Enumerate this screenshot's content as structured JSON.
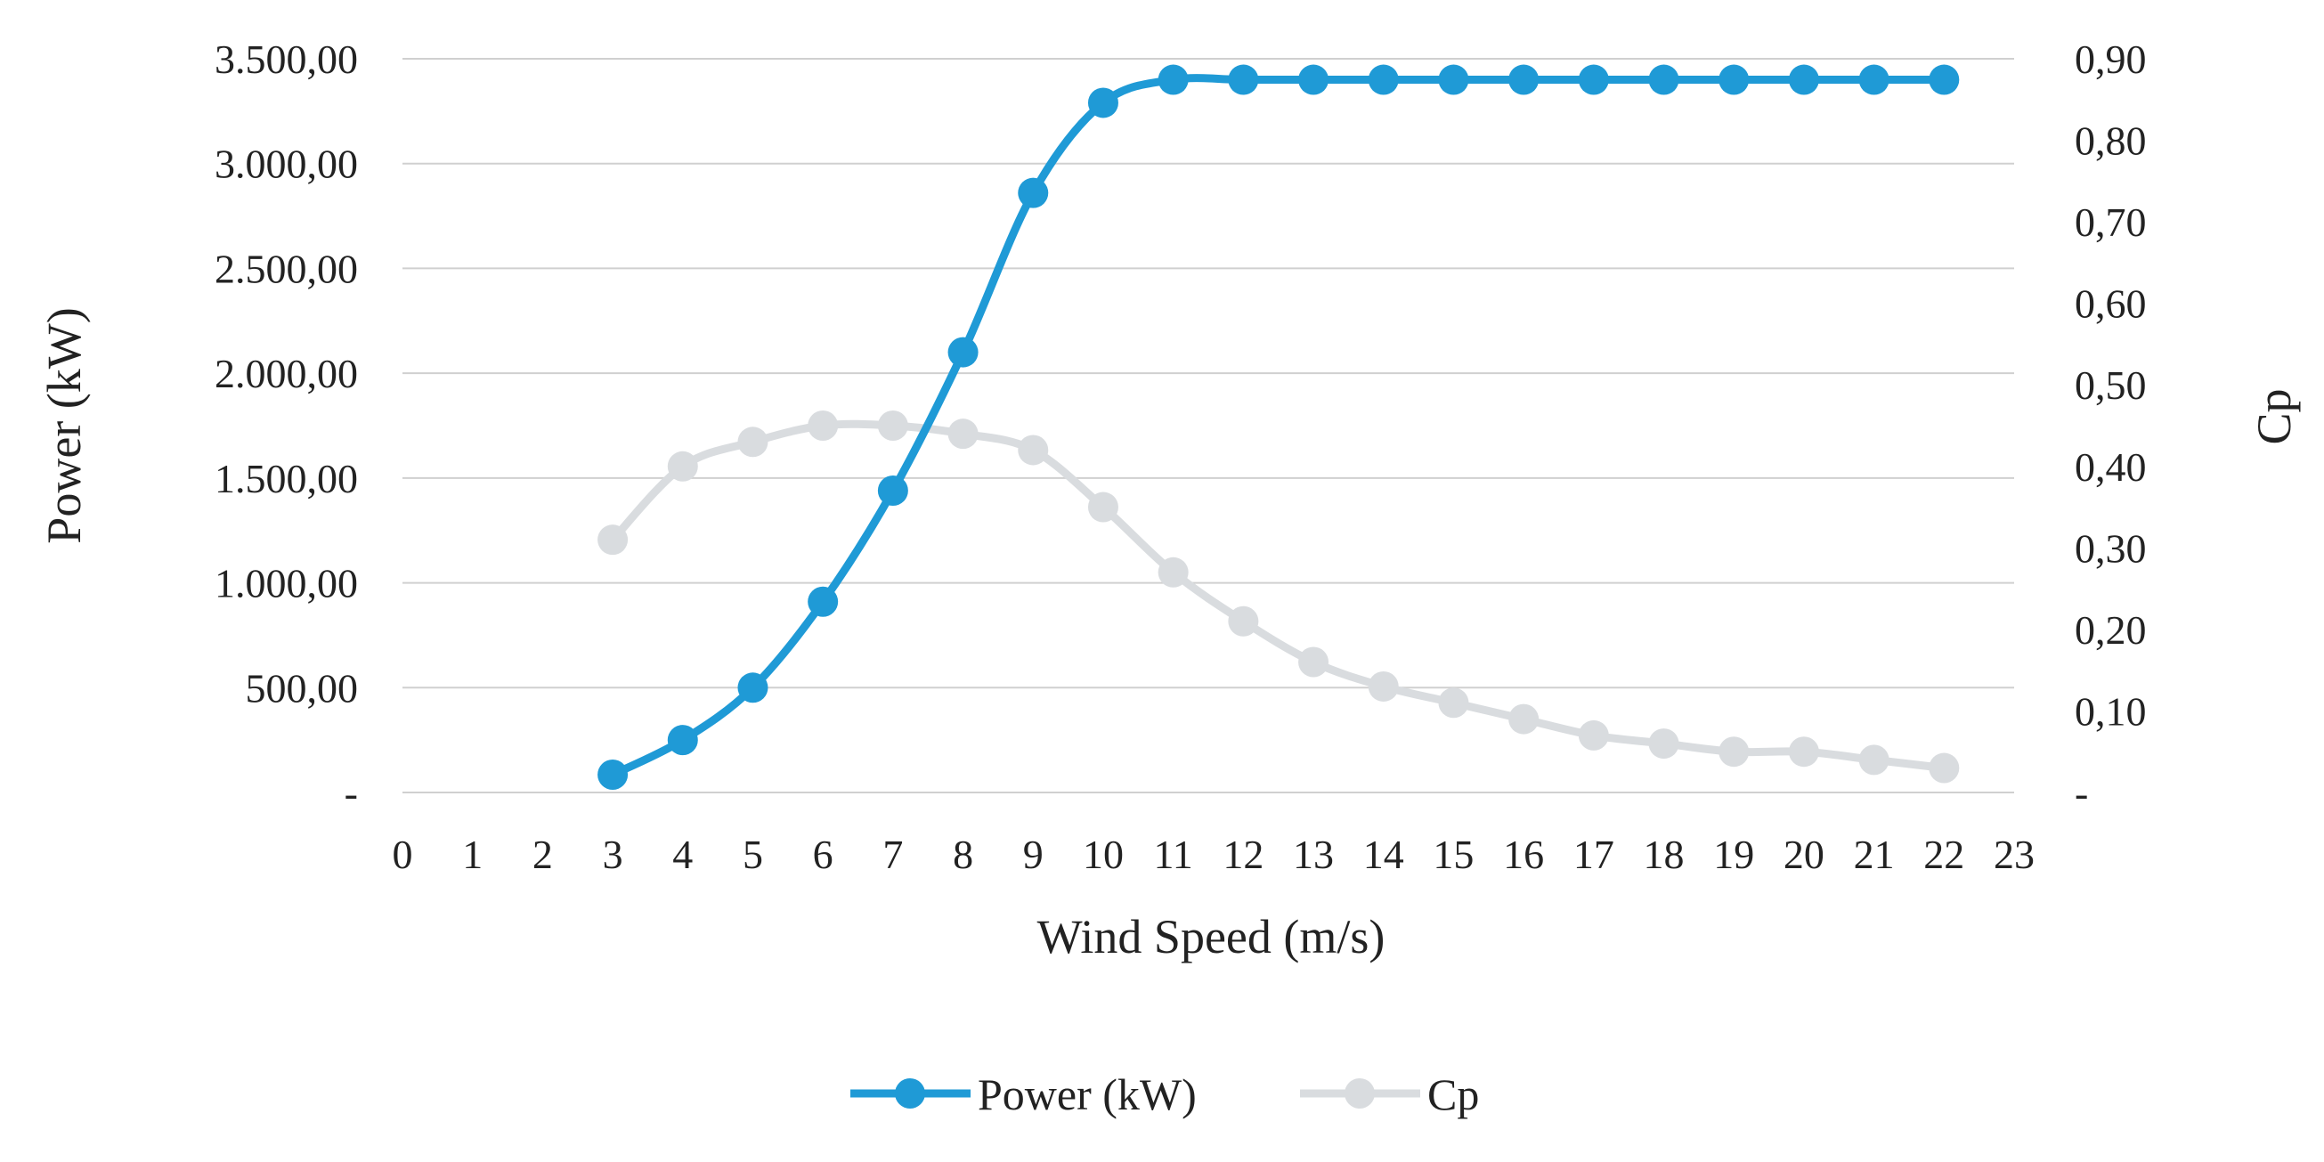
{
  "chart_data": {
    "type": "line",
    "title": "",
    "xlabel": "Wind Speed (m/s)",
    "ylabel": "Power (kW)",
    "y2label": "Cp",
    "xlim": [
      0,
      23
    ],
    "ylim": [
      0,
      3500
    ],
    "y2lim": [
      0,
      0.9
    ],
    "grid": true,
    "legend_position": "bottom",
    "x_ticks": [
      0,
      1,
      2,
      3,
      4,
      5,
      6,
      7,
      8,
      9,
      10,
      11,
      12,
      13,
      14,
      15,
      16,
      17,
      18,
      19,
      20,
      21,
      22,
      23
    ],
    "x_tick_labels": [
      "0",
      "1",
      "2",
      "3",
      "4",
      "5",
      "6",
      "7",
      "8",
      "9",
      "10",
      "11",
      "12",
      "13",
      "14",
      "15",
      "16",
      "17",
      "18",
      "19",
      "20",
      "21",
      "22",
      "23"
    ],
    "y_ticks": [
      0,
      500,
      1000,
      1500,
      2000,
      2500,
      3000,
      3500
    ],
    "y_tick_labels": [
      "-",
      "500,00",
      "1.000,00",
      "1.500,00",
      "2.000,00",
      "2.500,00",
      "3.000,00",
      "3.500,00"
    ],
    "y2_ticks": [
      0,
      0.1,
      0.2,
      0.3,
      0.4,
      0.5,
      0.6,
      0.7,
      0.8,
      0.9
    ],
    "y2_tick_labels": [
      "-",
      "0,10",
      "0,20",
      "0,30",
      "0,40",
      "0,50",
      "0,60",
      "0,70",
      "0,80",
      "0,90"
    ],
    "x": [
      3,
      4,
      5,
      6,
      7,
      8,
      9,
      10,
      11,
      12,
      13,
      14,
      15,
      16,
      17,
      18,
      19,
      20,
      21,
      22
    ],
    "series": [
      {
        "name": "Power (kW)",
        "axis": "left",
        "color": "#1F9AD6",
        "values": [
          85,
          250,
          500,
          910,
          1440,
          2100,
          2860,
          3290,
          3400,
          3400,
          3400,
          3400,
          3400,
          3400,
          3400,
          3400,
          3400,
          3400,
          3400,
          3400
        ]
      },
      {
        "name": "Cp",
        "axis": "right",
        "color": "#D9DCDF",
        "values": [
          0.31,
          0.4,
          0.43,
          0.45,
          0.45,
          0.44,
          0.42,
          0.35,
          0.27,
          0.21,
          0.16,
          0.13,
          0.11,
          0.09,
          0.07,
          0.06,
          0.05,
          0.05,
          0.04,
          0.03
        ]
      }
    ]
  }
}
